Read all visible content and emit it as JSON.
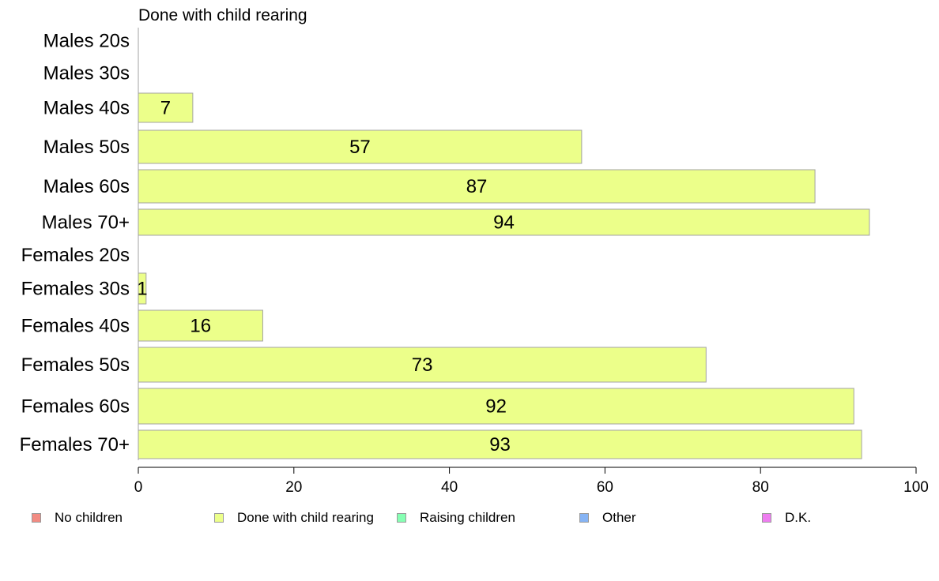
{
  "chart_data": {
    "type": "bar",
    "orientation": "horizontal",
    "title": "Done with child rearing",
    "categories": [
      "Males 20s",
      "Males 30s",
      "Males 40s",
      "Males 50s",
      "Males 60s",
      "Males 70+",
      "Females 20s",
      "Females 30s",
      "Females 40s",
      "Females 50s",
      "Females 60s",
      "Females 70+"
    ],
    "series": [
      {
        "name": "Done with child rearing",
        "color": "#ecff8a",
        "values": [
          0,
          0,
          7,
          57,
          87,
          94,
          0,
          1,
          16,
          73,
          92,
          93
        ]
      }
    ],
    "data_labels": [
      "",
      "",
      "7",
      "57",
      "87",
      "94",
      "",
      "1",
      "16",
      "73",
      "92",
      "93"
    ],
    "xlim": [
      0,
      100
    ],
    "xticks": [
      0,
      20,
      40,
      60,
      80,
      100
    ],
    "xlabel": "",
    "ylabel": "",
    "grid": false,
    "legend_position": "bottom",
    "legend": [
      {
        "label": "No children",
        "color": "#f28b82"
      },
      {
        "label": "Done with child rearing",
        "color": "#ecff8a"
      },
      {
        "label": "Raising children",
        "color": "#86ffb3"
      },
      {
        "label": "Other",
        "color": "#86b4f5"
      },
      {
        "label": "D.K.",
        "color": "#ee7df0"
      }
    ]
  }
}
